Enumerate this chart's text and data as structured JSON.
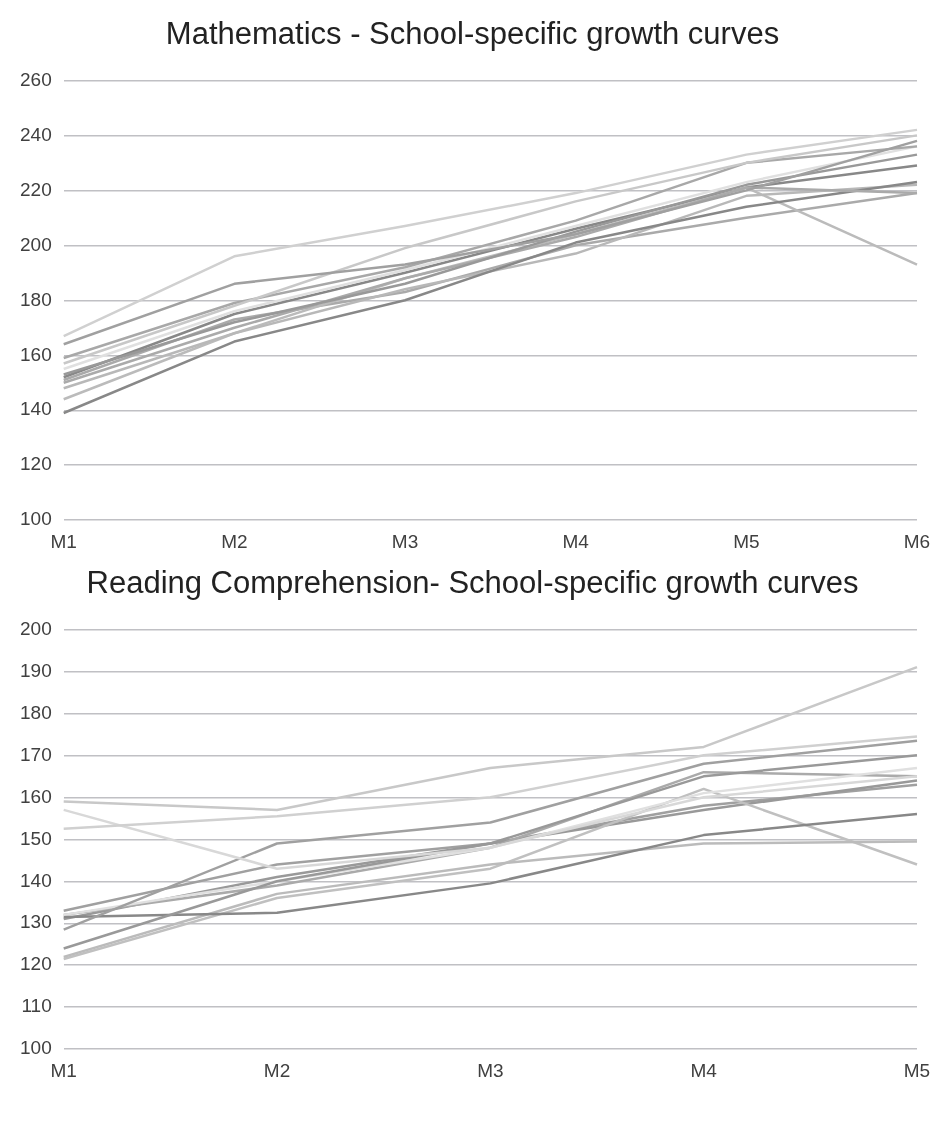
{
  "chart_data": [
    {
      "type": "line",
      "title": "Mathematics - School-specific growth curves",
      "categories": [
        "M1",
        "M2",
        "M3",
        "M4",
        "M5",
        "M6"
      ],
      "ylim": [
        100,
        260
      ],
      "yticks": [
        100,
        120,
        140,
        160,
        180,
        200,
        220,
        240,
        260
      ],
      "grid": "y",
      "legend": false,
      "marker": "none",
      "series": [
        {
          "color": "#d0d0d0",
          "values": [
            167,
            196,
            207,
            219,
            233,
            242
          ]
        },
        {
          "color": "#a0a0a0",
          "values": [
            164,
            186,
            193,
            204,
            220,
            238
          ]
        },
        {
          "color": "#c8c8c8",
          "values": [
            157,
            178,
            199,
            216,
            230,
            240
          ]
        },
        {
          "color": "#a8a8a8",
          "values": [
            159,
            179,
            192,
            209,
            230,
            236
          ]
        },
        {
          "color": "#e0e0e0",
          "values": [
            155,
            176,
            191,
            207,
            223,
            236
          ]
        },
        {
          "color": "#999999",
          "values": [
            153,
            172,
            186,
            205,
            222,
            233
          ]
        },
        {
          "color": "#aaaaaa",
          "values": [
            150,
            170,
            188,
            203,
            221,
            219
          ]
        },
        {
          "color": "#888888",
          "values": [
            139,
            165,
            180,
            201,
            214,
            223
          ]
        },
        {
          "color": "#b8b8b8",
          "values": [
            148,
            168,
            184,
            197,
            218,
            222
          ]
        },
        {
          "color": "#bbbbbb",
          "values": [
            144,
            168,
            188,
            204,
            221,
            193
          ]
        },
        {
          "color": "#aaaaaa",
          "values": [
            151,
            173,
            183,
            200,
            210,
            219
          ]
        },
        {
          "color": "#888888",
          "values": [
            152,
            175,
            190,
            206,
            221,
            229
          ]
        }
      ]
    },
    {
      "type": "line",
      "title": "Reading Comprehension- School-specific growth curves",
      "categories": [
        "M1",
        "M2",
        "M3",
        "M4",
        "M5"
      ],
      "ylim": [
        100,
        200
      ],
      "yticks": [
        100,
        110,
        120,
        130,
        140,
        150,
        160,
        170,
        180,
        190,
        200
      ],
      "grid": "y",
      "legend": false,
      "marker": "none",
      "series": [
        {
          "color": "#d0d0d0",
          "values": [
            152.5,
            155.5,
            160,
            170,
            174.5
          ]
        },
        {
          "color": "#c8c8c8",
          "values": [
            159,
            157,
            167,
            172,
            191
          ]
        },
        {
          "color": "#d8d8d8",
          "values": [
            157,
            143,
            148,
            160,
            165
          ]
        },
        {
          "color": "#a0a0a0",
          "values": [
            128.5,
            149,
            154,
            168,
            173.5
          ]
        },
        {
          "color": "#999999",
          "values": [
            124,
            140,
            149,
            165,
            170
          ]
        },
        {
          "color": "#e0e0e0",
          "values": [
            132,
            140,
            148,
            161,
            167
          ]
        },
        {
          "color": "#888888",
          "values": [
            131.5,
            132.5,
            139.5,
            151,
            156
          ]
        },
        {
          "color": "#bbbbbb",
          "values": [
            122,
            137,
            144,
            149,
            149.5
          ]
        },
        {
          "color": "#c0c0c0",
          "values": [
            121.5,
            136,
            143,
            162,
            144
          ]
        },
        {
          "color": "#aaaaaa",
          "values": [
            132,
            139,
            148,
            166,
            165
          ]
        },
        {
          "color": "#999999",
          "values": [
            131,
            141,
            149,
            157,
            164
          ]
        },
        {
          "color": "#a0a0a0",
          "values": [
            133,
            144,
            149,
            158,
            163
          ]
        }
      ]
    }
  ]
}
